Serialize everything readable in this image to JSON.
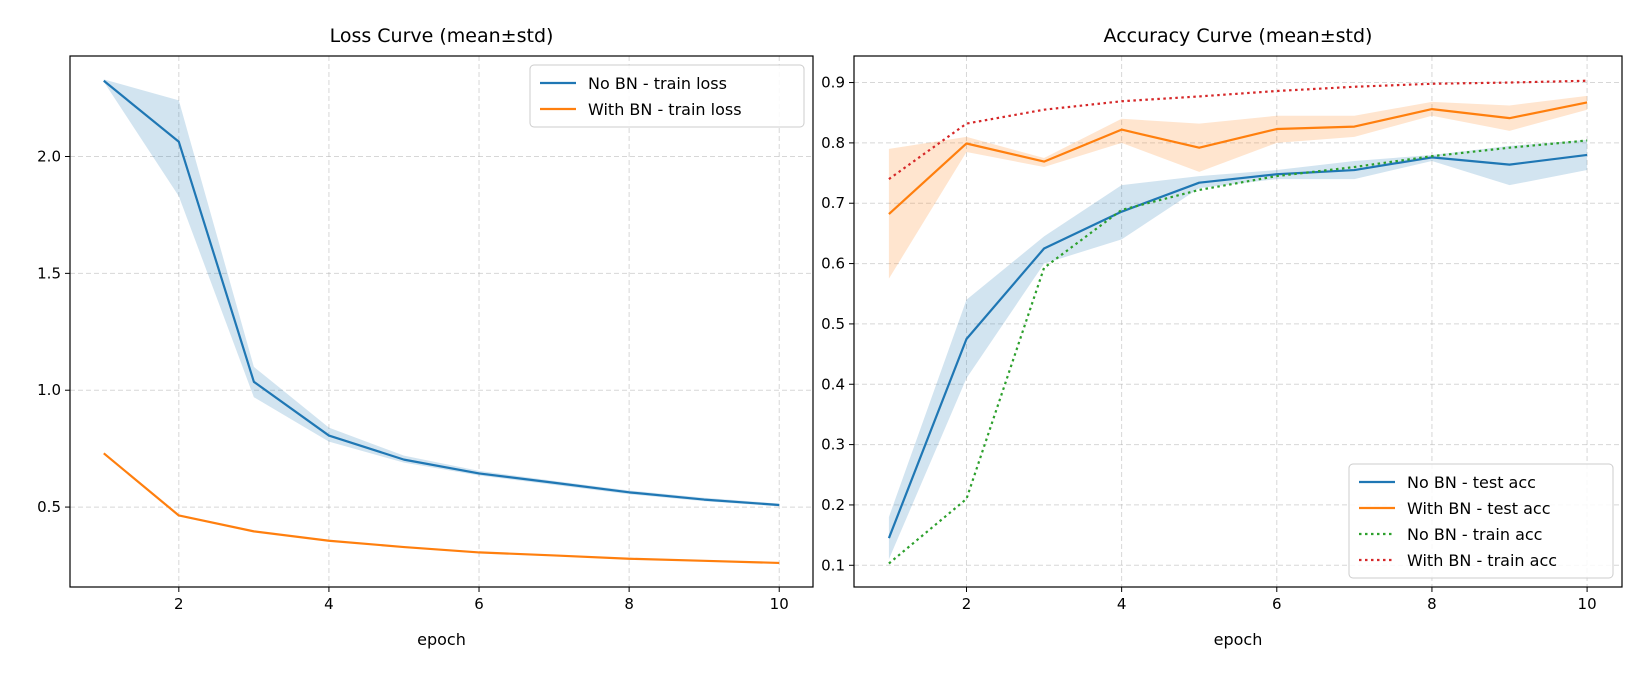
{
  "chart_data": [
    {
      "type": "line",
      "title": "Loss Curve (mean±std)",
      "xlabel": "epoch",
      "ylabel": "",
      "xlim": [
        0.55,
        10.45
      ],
      "ylim": [
        0.158,
        2.43
      ],
      "xticks": [
        2,
        4,
        6,
        8,
        10
      ],
      "yticks": [
        0.5,
        1.0,
        1.5,
        2.0
      ],
      "ytick_labels": [
        "0.5",
        "1.0",
        "1.5",
        "2.0"
      ],
      "grid": true,
      "legend_position": "top-right",
      "x": [
        1,
        2,
        3,
        4,
        5,
        6,
        7,
        8,
        9,
        10
      ],
      "series": [
        {
          "name": "No BN - train loss",
          "color": "#1f77b4",
          "style": "solid",
          "values": [
            2.324,
            2.063,
            1.036,
            0.806,
            0.703,
            0.644,
            0.604,
            0.563,
            0.532,
            0.509
          ],
          "std_lower": [
            2.32,
            1.83,
            0.97,
            0.78,
            0.69,
            0.635,
            0.595,
            0.555,
            0.525,
            0.503
          ],
          "std_upper": [
            2.33,
            2.24,
            1.1,
            0.84,
            0.72,
            0.655,
            0.612,
            0.571,
            0.54,
            0.515
          ]
        },
        {
          "name": "With BN - train loss",
          "color": "#ff7f0e",
          "style": "solid",
          "values": [
            0.73,
            0.464,
            0.396,
            0.356,
            0.329,
            0.306,
            0.293,
            0.279,
            0.27,
            0.261
          ]
        }
      ]
    },
    {
      "type": "line",
      "title": "Accuracy Curve (mean±std)",
      "xlabel": "epoch",
      "ylabel": "",
      "xlim": [
        0.55,
        10.45
      ],
      "ylim": [
        0.064,
        0.944
      ],
      "xticks": [
        2,
        4,
        6,
        8,
        10
      ],
      "yticks": [
        0.1,
        0.2,
        0.3,
        0.4,
        0.5,
        0.6,
        0.7,
        0.8,
        0.9
      ],
      "ytick_labels": [
        "0.1",
        "0.2",
        "0.3",
        "0.4",
        "0.5",
        "0.6",
        "0.7",
        "0.8",
        "0.9"
      ],
      "grid": true,
      "legend_position": "lower-right",
      "x": [
        1,
        2,
        3,
        4,
        5,
        6,
        7,
        8,
        9,
        10
      ],
      "series": [
        {
          "name": "No BN - test acc",
          "color": "#1f77b4",
          "style": "solid",
          "values": [
            0.145,
            0.475,
            0.625,
            0.686,
            0.734,
            0.748,
            0.755,
            0.776,
            0.764,
            0.78
          ],
          "std_lower": [
            0.11,
            0.41,
            0.6,
            0.64,
            0.725,
            0.74,
            0.74,
            0.77,
            0.73,
            0.755
          ],
          "std_upper": [
            0.18,
            0.54,
            0.645,
            0.73,
            0.745,
            0.755,
            0.77,
            0.78,
            0.795,
            0.805
          ]
        },
        {
          "name": "With BN - test acc",
          "color": "#ff7f0e",
          "style": "solid",
          "values": [
            0.682,
            0.799,
            0.769,
            0.822,
            0.792,
            0.823,
            0.827,
            0.856,
            0.841,
            0.867
          ],
          "std_lower": [
            0.575,
            0.785,
            0.76,
            0.8,
            0.752,
            0.8,
            0.81,
            0.845,
            0.82,
            0.855
          ],
          "std_upper": [
            0.79,
            0.81,
            0.775,
            0.84,
            0.832,
            0.845,
            0.845,
            0.868,
            0.862,
            0.878
          ]
        },
        {
          "name": "No BN - train acc",
          "color": "#2ca02c",
          "style": "dotted",
          "values": [
            0.103,
            0.21,
            0.593,
            0.689,
            0.722,
            0.745,
            0.76,
            0.778,
            0.792,
            0.804
          ]
        },
        {
          "name": "With BN - train acc",
          "color": "#d62728",
          "style": "dotted",
          "values": [
            0.74,
            0.832,
            0.855,
            0.869,
            0.877,
            0.886,
            0.893,
            0.898,
            0.9,
            0.903
          ]
        }
      ]
    }
  ]
}
